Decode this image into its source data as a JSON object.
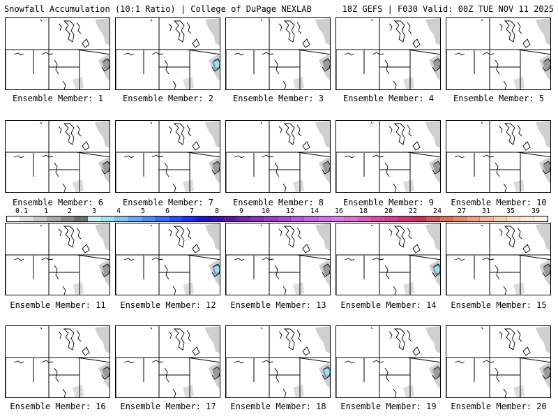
{
  "header": {
    "left": "Snowfall Accumulation (10:1 Ratio) | College of DuPage NEXLAB",
    "right": "18Z GEFS | F030 Valid: 00Z TUE NOV 11 2025"
  },
  "panels": [
    {
      "label": "Ensemble Member: 1",
      "blue_spot": false
    },
    {
      "label": "Ensemble Member: 2",
      "blue_spot": true
    },
    {
      "label": "Ensemble Member: 3",
      "blue_spot": false
    },
    {
      "label": "Ensemble Member: 4",
      "blue_spot": false
    },
    {
      "label": "Ensemble Member: 5",
      "blue_spot": false
    },
    {
      "label": "Ensemble Member: 6",
      "blue_spot": false
    },
    {
      "label": "Ensemble Member: 7",
      "blue_spot": false
    },
    {
      "label": "Ensemble Member: 8",
      "blue_spot": false
    },
    {
      "label": "Ensemble Member: 9",
      "blue_spot": false
    },
    {
      "label": "Ensemble Member: 10",
      "blue_spot": false
    },
    {
      "label": "Ensemble Member: 11",
      "blue_spot": false
    },
    {
      "label": "Ensemble Member: 12",
      "blue_spot": true
    },
    {
      "label": "Ensemble Member: 13",
      "blue_spot": false
    },
    {
      "label": "Ensemble Member: 14",
      "blue_spot": true
    },
    {
      "label": "Ensemble Member: 15",
      "blue_spot": false
    },
    {
      "label": "Ensemble Member: 16",
      "blue_spot": false
    },
    {
      "label": "Ensemble Member: 17",
      "blue_spot": false
    },
    {
      "label": "Ensemble Member: 18",
      "blue_spot": true
    },
    {
      "label": "Ensemble Member: 19",
      "blue_spot": false
    },
    {
      "label": "Ensemble Member: 20",
      "blue_spot": false
    }
  ],
  "colorbar": {
    "labels": [
      "0.1",
      "1",
      "2",
      "3",
      "4",
      "5",
      "6",
      "7",
      "8",
      "9",
      "10",
      "12",
      "14",
      "16",
      "18",
      "20",
      "22",
      "24",
      "27",
      "31",
      "35",
      "39"
    ],
    "colors": [
      "#ffffff",
      "#e0e0e0",
      "#c8c8c8",
      "#a8a8a8",
      "#8c8c8c",
      "#707070",
      "#c4f2f4",
      "#a4e2f2",
      "#84c8f0",
      "#64aaee",
      "#4c8cf2",
      "#3a6cf4",
      "#2a4cf6",
      "#1e2ef4",
      "#2018d0",
      "#3a14b0",
      "#5a1aa0",
      "#7028a8",
      "#8434b4",
      "#983ec0",
      "#a84acc",
      "#b858d6",
      "#c466de",
      "#d070e6",
      "#d87ce6",
      "#dc6ed0",
      "#dc5cb8",
      "#d84ca0",
      "#d4408a",
      "#d03874",
      "#cc3060",
      "#d05858",
      "#d87060",
      "#e08a72",
      "#e8a288",
      "#efb89c",
      "#f4ccb2",
      "#f8dcc8",
      "#fbe8da",
      "#fdf2e8"
    ]
  }
}
